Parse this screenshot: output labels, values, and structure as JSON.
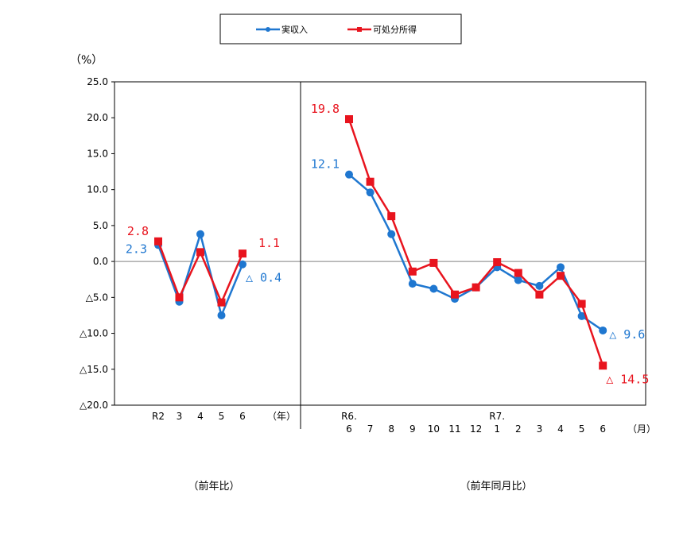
{
  "chart_data": {
    "type": "line",
    "unit_label": "（%）",
    "ylim": [
      -20,
      25
    ],
    "y_ticks": [
      {
        "value": 25,
        "label": "25.0"
      },
      {
        "value": 20,
        "label": "20.0"
      },
      {
        "value": 15,
        "label": "15.0"
      },
      {
        "value": 10,
        "label": "10.0"
      },
      {
        "value": 5,
        "label": "5.0"
      },
      {
        "value": 0,
        "label": "0.0"
      },
      {
        "value": -5,
        "label": "△5.0"
      },
      {
        "value": -10,
        "label": "△10.0"
      },
      {
        "value": -15,
        "label": "△15.0"
      },
      {
        "value": -20,
        "label": "△20.0"
      }
    ],
    "legend": [
      {
        "name": "実収入",
        "color": "#1f77d0",
        "marker": "circle"
      },
      {
        "name": "可処分所得",
        "color": "#e8141e",
        "marker": "square"
      }
    ],
    "panels": [
      {
        "title": "（前年比）",
        "unit_suffix": "（年）",
        "categories": [
          {
            "label": "R2",
            "sub": ""
          },
          {
            "label": "3",
            "sub": ""
          },
          {
            "label": "4",
            "sub": ""
          },
          {
            "label": "5",
            "sub": ""
          },
          {
            "label": "6",
            "sub": ""
          }
        ],
        "series": [
          {
            "name": "実収入",
            "values": [
              2.3,
              -5.6,
              3.8,
              -7.5,
              -0.4
            ]
          },
          {
            "name": "可処分所得",
            "values": [
              2.8,
              -5.0,
              1.3,
              -5.7,
              1.1
            ]
          }
        ],
        "annotations": [
          {
            "text": "2.8",
            "series": "可処分所得",
            "index": 0,
            "pos": "left-above"
          },
          {
            "text": "2.3",
            "series": "実収入",
            "index": 0,
            "pos": "left-below"
          },
          {
            "text": "1.1",
            "series": "可処分所得",
            "index": 4,
            "pos": "right-above"
          },
          {
            "text": "△ 0.4",
            "series": "実収入",
            "index": 4,
            "pos": "right-below"
          }
        ]
      },
      {
        "title": "（前年同月比）",
        "unit_suffix": "（月）",
        "categories": [
          {
            "label": "R6.",
            "sub": "6"
          },
          {
            "label": "",
            "sub": "7"
          },
          {
            "label": "",
            "sub": "8"
          },
          {
            "label": "",
            "sub": "9"
          },
          {
            "label": "",
            "sub": "10"
          },
          {
            "label": "",
            "sub": "11"
          },
          {
            "label": "",
            "sub": "12"
          },
          {
            "label": "R7.",
            "sub": "1"
          },
          {
            "label": "",
            "sub": "2"
          },
          {
            "label": "",
            "sub": "3"
          },
          {
            "label": "",
            "sub": "4"
          },
          {
            "label": "",
            "sub": "5"
          },
          {
            "label": "",
            "sub": "6"
          }
        ],
        "series": [
          {
            "name": "実収入",
            "values": [
              12.1,
              9.6,
              3.8,
              -3.1,
              -3.8,
              -5.2,
              -3.6,
              -0.8,
              -2.6,
              -3.4,
              -0.8,
              -7.6,
              -9.6
            ]
          },
          {
            "name": "可処分所得",
            "values": [
              19.8,
              11.1,
              6.3,
              -1.4,
              -0.2,
              -4.6,
              -3.6,
              -0.1,
              -1.6,
              -4.6,
              -2.0,
              -5.9,
              -14.5
            ]
          }
        ],
        "annotations": [
          {
            "text": "19.8",
            "series": "可処分所得",
            "index": 0,
            "pos": "left-above"
          },
          {
            "text": "12.1",
            "series": "実収入",
            "index": 0,
            "pos": "left-above"
          },
          {
            "text": "△ 9.6",
            "series": "実収入",
            "index": 12,
            "pos": "right"
          },
          {
            "text": "△ 14.5",
            "series": "可処分所得",
            "index": 12,
            "pos": "right-below"
          }
        ]
      }
    ]
  }
}
